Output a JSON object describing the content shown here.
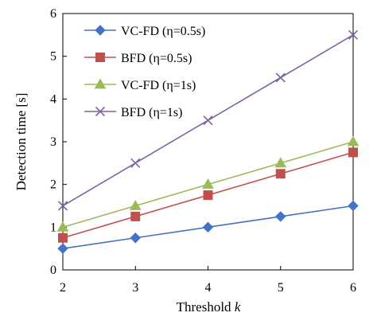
{
  "chart_data": {
    "type": "line",
    "title": "",
    "xlabel": "Threshold ",
    "xlabel_italic": "k",
    "ylabel": "Detection time [s]",
    "x": [
      2,
      3,
      4,
      5,
      6
    ],
    "xlim": [
      2,
      6
    ],
    "ylim": [
      0,
      6
    ],
    "xticks": [
      "2",
      "3",
      "4",
      "5",
      "6"
    ],
    "yticks": [
      "0",
      "1",
      "2",
      "3",
      "4",
      "5",
      "6"
    ],
    "grid": false,
    "legend_position": "top-left",
    "series": [
      {
        "name": "VC-FD (η=0.5s)",
        "values": [
          0.5,
          0.75,
          1.0,
          1.25,
          1.5
        ],
        "color": "#4472C4",
        "marker": "diamond"
      },
      {
        "name": "BFD (η=0.5s)",
        "values": [
          0.75,
          1.25,
          1.75,
          2.25,
          2.75
        ],
        "color": "#C0504D",
        "marker": "square"
      },
      {
        "name": "VC-FD (η=1s)",
        "values": [
          1.0,
          1.5,
          2.0,
          2.5,
          3.0
        ],
        "color": "#9BBB59",
        "marker": "triangle"
      },
      {
        "name": "BFD (η=1s)",
        "values": [
          1.5,
          2.5,
          3.5,
          4.5,
          5.5
        ],
        "color": "#8064A2",
        "marker": "x"
      }
    ]
  }
}
